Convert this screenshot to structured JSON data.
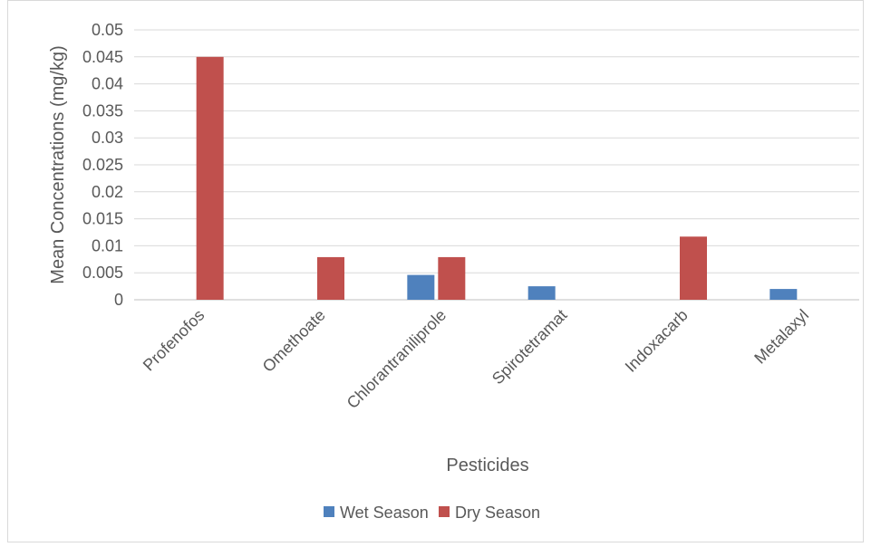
{
  "chart_data": {
    "type": "bar",
    "title": "",
    "xlabel": "Pesticides",
    "ylabel": "Mean Concentrations (mg/kg)",
    "categories": [
      "Profenofos",
      "Omethoate",
      "Chlorantraniliprole",
      "Spirotetramat",
      "Indoxacarb",
      "Metalaxyl"
    ],
    "series": [
      {
        "name": "Wet Season",
        "color": "#4F81BD",
        "values": [
          0,
          0,
          0.0046,
          0.0025,
          0,
          0.002
        ]
      },
      {
        "name": "Dry Season",
        "color": "#C0504D",
        "values": [
          0.045,
          0.0079,
          0.0079,
          0,
          0.0117,
          0
        ]
      }
    ],
    "ylim": [
      0,
      0.05
    ],
    "yticks": [
      "0",
      "0.005",
      "0.01",
      "0.015",
      "0.02",
      "0.025",
      "0.03",
      "0.035",
      "0.04",
      "0.045",
      "0.05"
    ],
    "grid": true,
    "legend": "bottom"
  }
}
